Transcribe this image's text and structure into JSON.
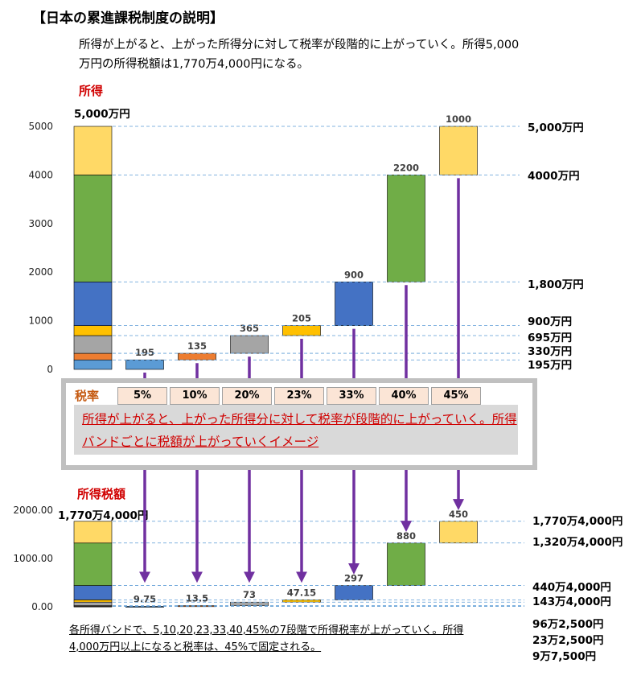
{
  "title": "【日本の累進課税制度の説明】",
  "description": "所得が上がると、上がった所得分に対して税率が段階的に上がっていく。所得5,000万円の所得税額は1,770万4,000円になる。",
  "top_label": "所得",
  "top_total_label": "5,000万円",
  "bottom_label": "所得税額",
  "bottom_total_label": "1,770万4,000円",
  "rate_label": "税率",
  "rates": [
    "5%",
    "10%",
    "20%",
    "23%",
    "33%",
    "40%",
    "45%"
  ],
  "box_note": "所得が上がると、上がった所得分に対して税率が段階的に上がっていく。所得バンドごとに税額が上がっていくイメージ",
  "bottom_note": "各所得バンドで、5,10,20,23,33,40,45%の7段階で所得税率が上がっていく。所得4,000万円以上になると税率は、45%で固定される。",
  "colors": {
    "band1": "#5b9bd5",
    "band2": "#ed7d31",
    "band3": "#a5a5a5",
    "band4": "#ffc000",
    "band5": "#4472c4",
    "band6": "#70ad47",
    "band7": "#ffd966",
    "arrow": "#7030a0",
    "red": "#d00000"
  },
  "chart_data": [
    {
      "type": "bar",
      "subtype": "waterfall",
      "title": "所得",
      "ylim": [
        0,
        5000
      ],
      "yticks": [
        "0",
        "1000",
        "2000",
        "3000",
        "4000",
        "5000"
      ],
      "stack_total": 5000,
      "categories": [
        "195",
        "135",
        "365",
        "205",
        "900",
        "2200",
        "1000"
      ],
      "values": [
        195,
        135,
        365,
        205,
        900,
        2200,
        1000
      ],
      "right_labels": [
        "5,000万円",
        "4000万円",
        "1,800万円",
        "900万円",
        "695万円",
        "330万円",
        "195万円"
      ],
      "grid": false
    },
    {
      "type": "bar",
      "subtype": "waterfall",
      "title": "所得税額",
      "ylim": [
        0,
        2000
      ],
      "yticks": [
        "0.00",
        "1000.00",
        "2000.00"
      ],
      "stack_total": 1770.4,
      "categories": [
        "9.75",
        "13.5",
        "73",
        "47.15",
        "297",
        "880",
        "450"
      ],
      "values": [
        9.75,
        13.5,
        73,
        47.15,
        297,
        880,
        450
      ],
      "right_labels": [
        "1,770万4,000円",
        "1,320万4,000円",
        "440万4,000円",
        "143万4,000円",
        "96万2,500円",
        "23万2,500円",
        "9万7,500円"
      ],
      "grid": false
    }
  ]
}
